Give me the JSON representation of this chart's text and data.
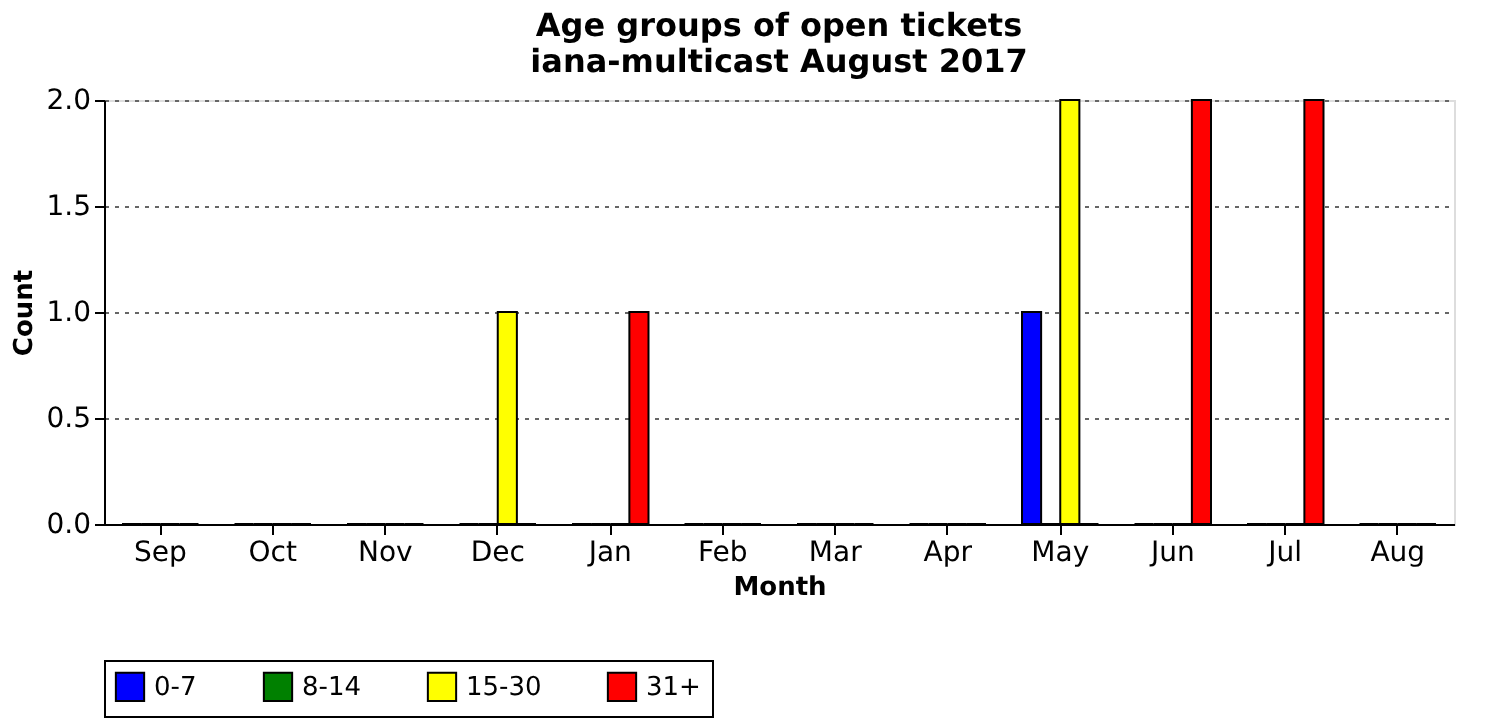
{
  "chart_data": {
    "type": "bar",
    "title": "Age groups of open tickets",
    "subtitle": "iana-multicast August 2017",
    "xlabel": "Month",
    "ylabel": "Count",
    "categories": [
      "Sep",
      "Oct",
      "Nov",
      "Dec",
      "Jan",
      "Feb",
      "Mar",
      "Apr",
      "May",
      "Jun",
      "Jul",
      "Aug"
    ],
    "series": [
      {
        "name": "0-7",
        "color": "#0000ff",
        "values": [
          0,
          0,
          0,
          0,
          0,
          0,
          0,
          0,
          1,
          0,
          0,
          0
        ]
      },
      {
        "name": "8-14",
        "color": "#008000",
        "values": [
          0,
          0,
          0,
          0,
          0,
          0,
          0,
          0,
          0,
          0,
          0,
          0
        ]
      },
      {
        "name": "15-30",
        "color": "#ffff00",
        "values": [
          0,
          0,
          0,
          1,
          0,
          0,
          0,
          0,
          2,
          0,
          0,
          0
        ]
      },
      {
        "name": "31+",
        "color": "#ff0000",
        "values": [
          0,
          0,
          0,
          0,
          1,
          0,
          0,
          0,
          0,
          2,
          2,
          0
        ]
      }
    ],
    "ylim": [
      0,
      2
    ],
    "yticks": [
      {
        "value": 0,
        "label": "0.0"
      },
      {
        "value": 0.5,
        "label": "0.5"
      },
      {
        "value": 1,
        "label": "1.0"
      },
      {
        "value": 1.5,
        "label": "1.5"
      },
      {
        "value": 2,
        "label": "2.0"
      }
    ],
    "grid": "y",
    "legend": "bottom"
  }
}
